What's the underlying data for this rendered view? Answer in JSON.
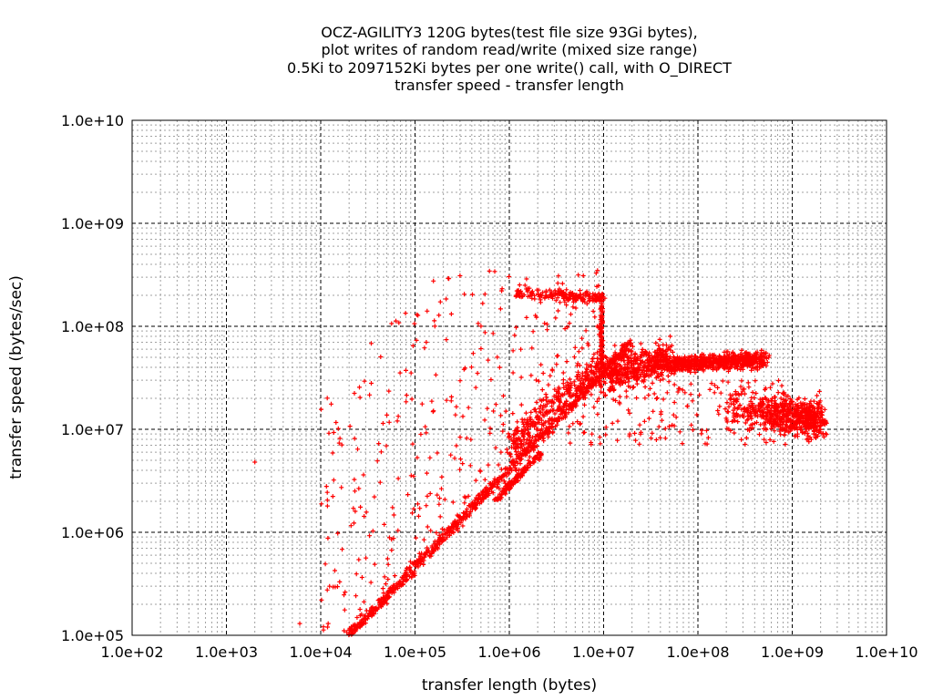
{
  "chart_data": {
    "type": "scatter",
    "title_lines": [
      "OCZ-AGILITY3 120G bytes(test file size 93Gi bytes),",
      "plot writes of random read/write (mixed size range)",
      "0.5Ki to 2097152Ki bytes per one write() call, with O_DIRECT",
      "transfer speed - transfer length"
    ],
    "xlabel": "transfer length (bytes)",
    "ylabel": "transfer speed (bytes/sec)",
    "xscale": "log",
    "yscale": "log",
    "xlim": [
      100.0,
      10000000000.0
    ],
    "ylim": [
      100000.0,
      10000000000.0
    ],
    "xticks": [
      {
        "value": 100.0,
        "label": "1.0e+02"
      },
      {
        "value": 1000.0,
        "label": "1.0e+03"
      },
      {
        "value": 10000.0,
        "label": "1.0e+04"
      },
      {
        "value": 100000.0,
        "label": "1.0e+05"
      },
      {
        "value": 1000000.0,
        "label": "1.0e+06"
      },
      {
        "value": 10000000.0,
        "label": "1.0e+07"
      },
      {
        "value": 100000000.0,
        "label": "1.0e+08"
      },
      {
        "value": 1000000000.0,
        "label": "1.0e+09"
      },
      {
        "value": 10000000000.0,
        "label": "1.0e+10"
      }
    ],
    "yticks": [
      {
        "value": 100000.0,
        "label": "1.0e+05"
      },
      {
        "value": 1000000.0,
        "label": "1.0e+06"
      },
      {
        "value": 10000000.0,
        "label": "1.0e+07"
      },
      {
        "value": 100000000.0,
        "label": "1.0e+08"
      },
      {
        "value": 1000000000.0,
        "label": "1.0e+09"
      },
      {
        "value": 10000000000.0,
        "label": "1.0e+10"
      }
    ],
    "grid": true,
    "series_color": "#ff0000",
    "marker": "plus",
    "point_clusters": [
      {
        "name": "main-diagonal",
        "from": [
          20000.0,
          100000.0
        ],
        "to": [
          20000000.0,
          70000000.0
        ],
        "count": 800,
        "jitter_decades": 0.03
      },
      {
        "name": "upper-diagonal",
        "from": [
          1000000.0,
          7000000.0
        ],
        "to": [
          10000000.0,
          45000000.0
        ],
        "count": 280,
        "jitter_decades": 0.08
      },
      {
        "name": "lower-parallel",
        "from": [
          700000.0,
          2000000.0
        ],
        "to": [
          2200000.0,
          6000000.0
        ],
        "count": 150,
        "jitter_decades": 0.02
      },
      {
        "name": "cache-plateau",
        "from": [
          1200000.0,
          210000000.0
        ],
        "to": [
          10000000.0,
          190000000.0
        ],
        "count": 180,
        "jitter_decades": 0.03
      },
      {
        "name": "sawtooth",
        "from": [
          10000000.0,
          35000000.0
        ],
        "to": [
          50000000.0,
          48000000.0
        ],
        "count": 450,
        "jitter_decades": 0.09
      },
      {
        "name": "mid-plateau",
        "from": [
          50000000.0,
          43000000.0
        ],
        "to": [
          550000000.0,
          48000000.0
        ],
        "count": 600,
        "jitter_decades": 0.04
      },
      {
        "name": "large-cluster",
        "from": [
          150000000.0,
          17000000.0
        ],
        "to": [
          2100000000.0,
          12500000.0
        ],
        "count": 650,
        "jitter_decades": 0.09
      },
      {
        "name": "column-1e7",
        "from": [
          9500000.0,
          40000000.0
        ],
        "to": [
          9500000.0,
          200000000.0
        ],
        "count": 90,
        "jitter_decades": 0.02
      }
    ],
    "scatter_regions": [
      {
        "name": "above-diagonal",
        "xrange": [
          10000.0,
          10000000.0
        ],
        "yrange": [
          100000.0,
          350000000.0
        ],
        "count": 380
      },
      {
        "name": "below-plateau",
        "xrange": [
          2000000.0,
          1000000000.0
        ],
        "yrange": [
          7000000.0,
          30000000.0
        ],
        "count": 180
      }
    ],
    "points": [
      [
        2000.0,
        4800000.0
      ],
      [
        12000.0,
        130000.0
      ],
      [
        6000.0,
        130000.0
      ],
      [
        700000.0,
        340000000.0
      ],
      [
        300000.0,
        310000000.0
      ]
    ]
  }
}
